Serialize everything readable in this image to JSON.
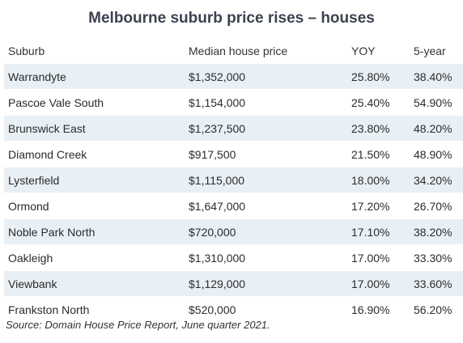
{
  "title": "Melbourne suburb price rises – houses",
  "table": {
    "headers": [
      "Suburb",
      "Median house price",
      "YOY",
      "5-year"
    ],
    "rows": [
      [
        "Warrandyte",
        "$1,352,000",
        "25.80%",
        "38.40%"
      ],
      [
        "Pascoe Vale South",
        "$1,154,000",
        "25.40%",
        "54.90%"
      ],
      [
        "Brunswick East",
        "$1,237,500",
        "23.80%",
        "48.20%"
      ],
      [
        "Diamond Creek",
        "$917,500",
        "21.50%",
        "48.90%"
      ],
      [
        "Lysterfield",
        "$1,115,000",
        "18.00%",
        "34.20%"
      ],
      [
        "Ormond",
        "$1,647,000",
        "17.20%",
        "26.70%"
      ],
      [
        "Noble Park North",
        "$720,000",
        "17.10%",
        "38.20%"
      ],
      [
        "Oakleigh",
        "$1,310,000",
        "17.00%",
        "33.30%"
      ],
      [
        "Viewbank",
        "$1,129,000",
        "17.00%",
        "33.60%"
      ],
      [
        "Frankston North",
        "$520,000",
        "16.90%",
        "56.20%"
      ]
    ]
  },
  "source": "Source: Domain House Price Report, June quarter 2021.",
  "colors": {
    "stripe": "#e8f0f6",
    "title": "#3d4250"
  }
}
